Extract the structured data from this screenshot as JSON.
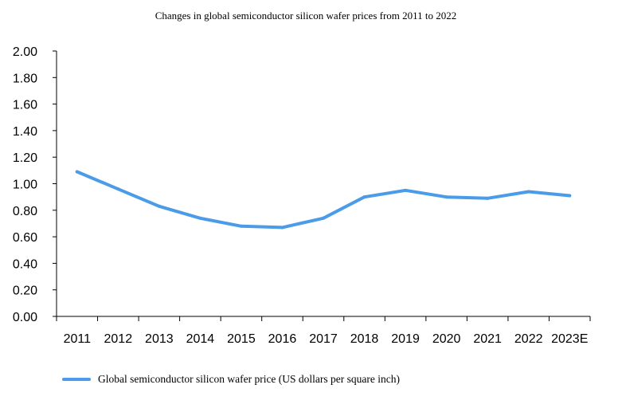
{
  "chart_data": {
    "type": "line",
    "title": "Changes in global semiconductor silicon wafer prices from 2011 to 2022",
    "xlabel": "",
    "ylabel": "",
    "categories": [
      "2011",
      "2012",
      "2013",
      "2014",
      "2015",
      "2016",
      "2017",
      "2018",
      "2019",
      "2020",
      "2021",
      "2022",
      "2023E"
    ],
    "y_ticks": [
      "0.00",
      "0.20",
      "0.40",
      "0.60",
      "0.80",
      "1.00",
      "1.20",
      "1.40",
      "1.60",
      "1.80",
      "2.00"
    ],
    "ylim": [
      0,
      2.0
    ],
    "grid": false,
    "legend_position": "bottom-left",
    "series": [
      {
        "name": "Global semiconductor silicon wafer price (US dollars per square inch)",
        "color": "#4a9be8",
        "values": [
          1.09,
          0.96,
          0.83,
          0.74,
          0.68,
          0.67,
          0.74,
          0.9,
          0.95,
          0.9,
          0.89,
          0.94,
          0.91
        ]
      }
    ]
  }
}
